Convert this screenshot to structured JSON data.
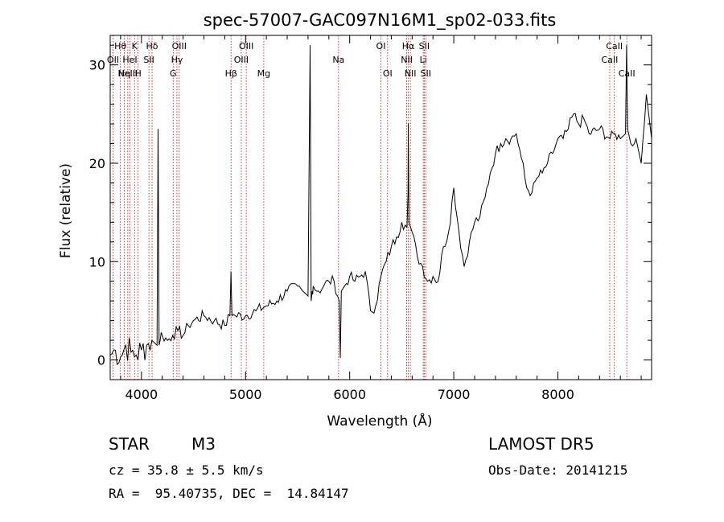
{
  "chart_data": {
    "type": "line",
    "title": "spec-57007-GAC097N16M1_sp02-033.fits",
    "xlabel": "Wavelength (Å)",
    "ylabel": "Flux (relative)",
    "xlim": [
      3700,
      8900
    ],
    "ylim": [
      -2,
      33
    ],
    "xticks": [
      4000,
      5000,
      6000,
      7000,
      8000
    ],
    "yticks": [
      0,
      10,
      20,
      30
    ],
    "line_color": "#000000",
    "marker_color": "#cc0000",
    "series": [
      {
        "x": [
          3700,
          3750,
          3800,
          3850,
          3900,
          3950,
          4000,
          4050,
          4100,
          4150,
          4160,
          4170,
          4180,
          4200,
          4250,
          4300,
          4350,
          4400,
          4450,
          4500,
          4600,
          4700,
          4800,
          4850,
          4860,
          4870,
          4900,
          5000,
          5100,
          5200,
          5300,
          5400,
          5500,
          5550,
          5600,
          5620,
          5630,
          5640,
          5650,
          5700,
          5750,
          5800,
          5850,
          5900,
          5910,
          5920,
          5950,
          6000,
          6050,
          6100,
          6150,
          6200,
          6250,
          6300,
          6350,
          6400,
          6450,
          6500,
          6550,
          6560,
          6563,
          6570,
          6600,
          6650,
          6700,
          6750,
          6800,
          6850,
          6900,
          6950,
          7000,
          7050,
          7100,
          7150,
          7200,
          7250,
          7300,
          7350,
          7400,
          7450,
          7500,
          7550,
          7600,
          7650,
          7700,
          7750,
          7800,
          7850,
          7900,
          7950,
          8000,
          8050,
          8100,
          8150,
          8200,
          8250,
          8300,
          8400,
          8500,
          8550,
          8600,
          8650,
          8660,
          8670,
          8700,
          8750,
          8800,
          8850,
          8900
        ],
        "y": [
          0.5,
          1.0,
          0.3,
          1.5,
          0.8,
          0.5,
          1.0,
          1.5,
          2.0,
          1.5,
          23.5,
          1.5,
          2.0,
          2.5,
          2.0,
          2.5,
          3.0,
          2.5,
          3.5,
          4.0,
          4.5,
          4.0,
          3.5,
          4.5,
          9.0,
          4.5,
          4.5,
          4.5,
          5.0,
          5.5,
          6.0,
          7.0,
          7.5,
          7.0,
          6.5,
          32.0,
          6.0,
          7.0,
          7.5,
          7.0,
          7.5,
          8.0,
          8.0,
          6.0,
          0.2,
          7.0,
          7.5,
          8.5,
          8.0,
          8.5,
          9.0,
          5.0,
          5.5,
          8.5,
          10.0,
          11.5,
          12.5,
          14.0,
          13.5,
          17.0,
          24.0,
          14.0,
          13.0,
          10.5,
          9.5,
          8.0,
          8.5,
          8.0,
          11.5,
          13.0,
          17.5,
          13.0,
          9.5,
          12.0,
          14.0,
          14.5,
          16.5,
          19.0,
          21.0,
          22.0,
          22.5,
          22.5,
          23.0,
          20.5,
          17.5,
          17.0,
          18.5,
          19.0,
          20.0,
          21.0,
          22.5,
          22.5,
          23.5,
          25.0,
          24.0,
          24.5,
          23.0,
          23.5,
          22.5,
          23.0,
          22.5,
          23.0,
          32.0,
          23.5,
          22.0,
          22.5,
          20.0,
          27.0,
          22.5
        ]
      }
    ],
    "line_markers": [
      {
        "x": 3727,
        "label": "OII",
        "row": 2
      },
      {
        "x": 3798,
        "label": "Hθ",
        "row": 1
      },
      {
        "x": 3835,
        "label": "Hη",
        "row": 3
      },
      {
        "x": 3869,
        "label": "NeIII",
        "row": 3
      },
      {
        "x": 3889,
        "label": "HeI",
        "row": 2
      },
      {
        "x": 3934,
        "label": "K",
        "row": 1
      },
      {
        "x": 3968,
        "label": "H",
        "row": 3
      },
      {
        "x": 4072,
        "label": "SII",
        "row": 2
      },
      {
        "x": 4102,
        "label": "Hδ",
        "row": 1
      },
      {
        "x": 4305,
        "label": "G",
        "row": 3
      },
      {
        "x": 4341,
        "label": "Hγ",
        "row": 2
      },
      {
        "x": 4363,
        "label": "OIII",
        "row": 1
      },
      {
        "x": 4861,
        "label": "Hβ",
        "row": 3
      },
      {
        "x": 4959,
        "label": "OIII",
        "row": 2
      },
      {
        "x": 5007,
        "label": "OIII",
        "row": 1
      },
      {
        "x": 5175,
        "label": "Mg",
        "row": 3
      },
      {
        "x": 5893,
        "label": "Na",
        "row": 2
      },
      {
        "x": 6300,
        "label": "OI",
        "row": 1
      },
      {
        "x": 6364,
        "label": "OI",
        "row": 3
      },
      {
        "x": 6548,
        "label": "NII",
        "row": 2
      },
      {
        "x": 6563,
        "label": "Hα",
        "row": 1
      },
      {
        "x": 6583,
        "label": "NII",
        "row": 3
      },
      {
        "x": 6707,
        "label": "Li",
        "row": 2
      },
      {
        "x": 6716,
        "label": "SII",
        "row": 1
      },
      {
        "x": 6731,
        "label": "SII",
        "row": 3
      },
      {
        "x": 8498,
        "label": "CaII",
        "row": 2
      },
      {
        "x": 8542,
        "label": "CaII",
        "row": 1
      },
      {
        "x": 8662,
        "label": "CaII",
        "row": 3
      }
    ]
  },
  "info": {
    "object_class": "STAR",
    "subclass": "M3",
    "survey": "LAMOST DR5",
    "redshift": "cz = 35.8 ± 5.5 km/s",
    "obs_date": "Obs-Date: 20141215",
    "coords": "RA =  95.40735, DEC =  14.84147"
  }
}
